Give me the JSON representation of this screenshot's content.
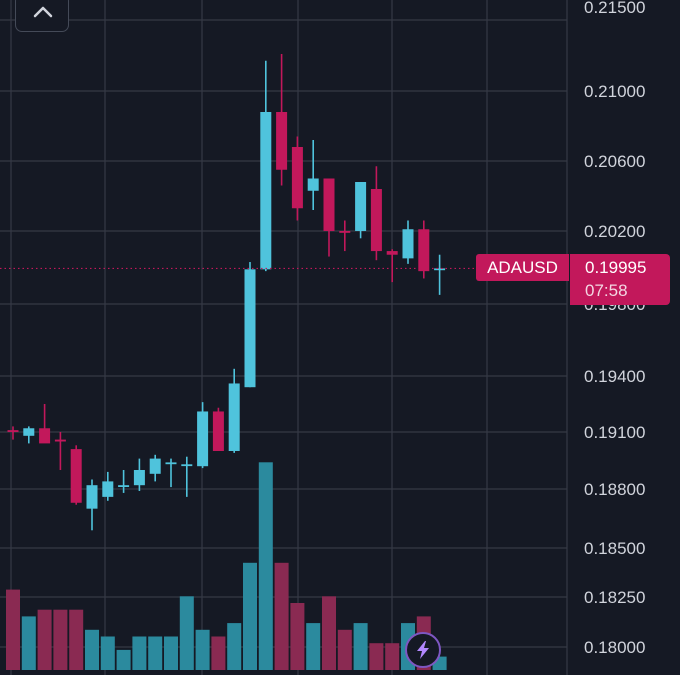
{
  "chart_data": {
    "type": "candlestick",
    "symbol": "ADAUSD",
    "last_price": "0.19995",
    "countdown": "07:58",
    "price_ticks": [
      "0.21500",
      "0.21000",
      "0.20600",
      "0.20200",
      "0.19800",
      "0.19400",
      "0.19100",
      "0.18800",
      "0.18500",
      "0.18250",
      "0.18000"
    ],
    "ohlc": [
      {
        "o": 0.1911,
        "h": 0.1913,
        "l": 0.1906,
        "c": 0.191
      },
      {
        "o": 0.1908,
        "h": 0.1913,
        "l": 0.1904,
        "c": 0.1912
      },
      {
        "o": 0.1912,
        "h": 0.1925,
        "l": 0.1906,
        "c": 0.1904
      },
      {
        "o": 0.1906,
        "h": 0.191,
        "l": 0.189,
        "c": 0.1905
      },
      {
        "o": 0.1901,
        "h": 0.1903,
        "l": 0.1872,
        "c": 0.1873
      },
      {
        "o": 0.187,
        "h": 0.1885,
        "l": 0.1859,
        "c": 0.1882
      },
      {
        "o": 0.1876,
        "h": 0.1889,
        "l": 0.1874,
        "c": 0.1884
      },
      {
        "o": 0.1882,
        "h": 0.189,
        "l": 0.1878,
        "c": 0.1882
      },
      {
        "o": 0.1882,
        "h": 0.1896,
        "l": 0.1879,
        "c": 0.189
      },
      {
        "o": 0.1888,
        "h": 0.1898,
        "l": 0.1884,
        "c": 0.1896
      },
      {
        "o": 0.1894,
        "h": 0.1896,
        "l": 0.1881,
        "c": 0.1894
      },
      {
        "o": 0.1893,
        "h": 0.1897,
        "l": 0.1876,
        "c": 0.1893
      },
      {
        "o": 0.1892,
        "h": 0.1926,
        "l": 0.1891,
        "c": 0.1921
      },
      {
        "o": 0.1921,
        "h": 0.1923,
        "l": 0.19,
        "c": 0.19
      },
      {
        "o": 0.19,
        "h": 0.1944,
        "l": 0.1899,
        "c": 0.1936
      },
      {
        "o": 0.1934,
        "h": 0.2003,
        "l": 0.1934,
        "c": 0.1999
      },
      {
        "o": 0.1999,
        "h": 0.2118,
        "l": 0.1998,
        "c": 0.2088
      },
      {
        "o": 0.2088,
        "h": 0.2122,
        "l": 0.2046,
        "c": 0.2055
      },
      {
        "o": 0.2068,
        "h": 0.2074,
        "l": 0.2026,
        "c": 0.2033
      },
      {
        "o": 0.2043,
        "h": 0.2072,
        "l": 0.2032,
        "c": 0.205
      },
      {
        "o": 0.205,
        "h": 0.205,
        "l": 0.2006,
        "c": 0.202
      },
      {
        "o": 0.202,
        "h": 0.2026,
        "l": 0.2009,
        "c": 0.2019
      },
      {
        "o": 0.202,
        "h": 0.2048,
        "l": 0.2016,
        "c": 0.2048
      },
      {
        "o": 0.2044,
        "h": 0.2057,
        "l": 0.2004,
        "c": 0.2009
      },
      {
        "o": 0.2009,
        "h": 0.201,
        "l": 0.1992,
        "c": 0.2007
      },
      {
        "o": 0.2005,
        "h": 0.2026,
        "l": 0.2002,
        "c": 0.2021
      },
      {
        "o": 0.2021,
        "h": 0.2026,
        "l": 0.1994,
        "c": 0.1998
      },
      {
        "o": 0.19995,
        "h": 0.2007,
        "l": 0.1985,
        "c": 0.19995
      }
    ],
    "volume": [
      12,
      8,
      9,
      9,
      9,
      6,
      5,
      3,
      5,
      5,
      5,
      11,
      6,
      5,
      7,
      16,
      31,
      16,
      10,
      7,
      11,
      6,
      7,
      4,
      4,
      7,
      8,
      2
    ]
  },
  "ui": {
    "collapse_icon": "chevron-up-icon",
    "quick_trade_icon": "lightning-icon"
  },
  "colors": {
    "background": "#151924",
    "grid": "#363a45",
    "up": "#4fc3dc",
    "down": "#c2185b",
    "up_volume": "#2b8a9e",
    "down_volume": "#8a2a52",
    "price_line": "#c2185b",
    "text": "#d1d4dc"
  }
}
